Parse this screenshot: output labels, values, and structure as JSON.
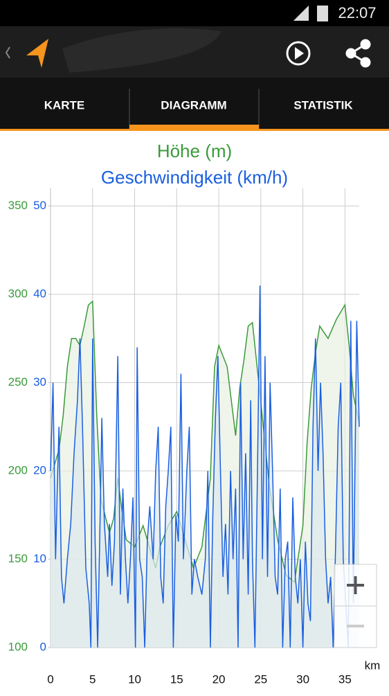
{
  "status_bar": {
    "time": "22:07"
  },
  "tabs": [
    "KARTE",
    "DIAGRAMM",
    "STATISTIK"
  ],
  "active_tab": 1,
  "chart_data": {
    "type": "line",
    "x_label": "km",
    "xlim": [
      0,
      36.7
    ],
    "xticks": [
      0,
      5,
      10,
      15,
      20,
      25,
      30,
      35
    ],
    "ylim": [
      100,
      360
    ],
    "yticks": [
      100,
      150,
      200,
      250,
      300,
      350
    ],
    "y2lim": [
      0,
      52
    ],
    "y2ticks": [
      0,
      10,
      20,
      30,
      40,
      50
    ],
    "grid": true,
    "series": [
      {
        "name": "Höhe (m)",
        "color": "#3a9a3a",
        "fill": "#e8f1e2",
        "x": [
          0,
          1,
          1.5,
          2,
          2.5,
          3,
          3.5,
          4,
          4.5,
          5,
          5.5,
          6,
          7,
          7.5,
          8,
          8.5,
          9,
          10,
          11,
          12,
          12.5,
          13,
          14,
          15,
          16,
          17,
          18,
          19,
          19.5,
          20,
          21,
          22,
          22.5,
          23,
          23.5,
          24,
          25,
          26,
          27,
          28,
          29,
          30,
          30.5,
          31,
          31.5,
          32,
          33,
          34,
          35,
          35.5,
          36,
          36.7
        ],
        "values": [
          196,
          212,
          231,
          259,
          275,
          275,
          271,
          282,
          294,
          296,
          231,
          184,
          165,
          173,
          196,
          177,
          161,
          157,
          169,
          153,
          145,
          157,
          169,
          177,
          161,
          145,
          157,
          196,
          259,
          271,
          259,
          220,
          247,
          263,
          282,
          284,
          239,
          192,
          161,
          141,
          137,
          169,
          216,
          247,
          267,
          282,
          275,
          286,
          294,
          271,
          243,
          227
        ]
      },
      {
        "name": "Geschwindigkeit (km/h)",
        "color": "#1a5fe0",
        "fill": "#dde8ee",
        "axis": "y2",
        "x": [
          0,
          0.3,
          0.6,
          0.8,
          1,
          1.3,
          1.6,
          2,
          2.4,
          2.8,
          3.2,
          3.5,
          3.8,
          4.2,
          4.6,
          4.8,
          5,
          5.3,
          5.6,
          5.9,
          6.1,
          6.4,
          6.8,
          7,
          7.3,
          7.6,
          8,
          8.3,
          8.6,
          8.9,
          9.2,
          9.5,
          9.8,
          10.1,
          10.3,
          10.6,
          10.9,
          11.2,
          11.5,
          11.8,
          12.2,
          12.5,
          12.8,
          13.1,
          13.4,
          13.7,
          14,
          14.3,
          14.6,
          14.9,
          15.2,
          15.5,
          15.8,
          16.2,
          16.5,
          16.8,
          17.1,
          17.5,
          18,
          18.4,
          18.7,
          19,
          19.3,
          19.6,
          19.9,
          20.2,
          20.5,
          20.8,
          21.1,
          21.4,
          21.7,
          22,
          22.3,
          22.6,
          22.9,
          23.2,
          23.5,
          23.8,
          24,
          24.3,
          24.6,
          24.9,
          25.2,
          25.5,
          25.8,
          26.1,
          26.4,
          26.7,
          27,
          27.3,
          27.6,
          27.9,
          28.2,
          28.5,
          28.8,
          29.1,
          29.4,
          29.7,
          30,
          30.3,
          30.6,
          30.9,
          31.2,
          31.5,
          31.8,
          32.1,
          32.4,
          32.7,
          33,
          33.3,
          33.6,
          33.9,
          34.2,
          34.5,
          34.8,
          35.1,
          35.4,
          35.7,
          36,
          36.4,
          36.7
        ],
        "values": [
          20,
          30,
          10,
          18,
          25,
          8,
          5,
          10,
          14,
          22,
          28,
          35,
          25,
          9,
          5,
          0,
          35,
          12,
          0,
          15,
          26,
          14,
          8,
          14,
          7,
          12,
          33,
          6,
          18,
          10,
          5,
          10,
          17,
          0,
          34,
          10,
          8,
          0,
          12,
          16,
          10,
          20,
          25,
          8,
          5,
          16,
          20,
          25,
          0,
          15,
          12,
          31,
          10,
          20,
          25,
          6,
          10,
          8,
          6,
          10,
          20,
          0,
          15,
          26,
          33,
          20,
          8,
          14,
          6,
          20,
          10,
          18,
          0,
          30,
          10,
          22,
          6,
          28,
          10,
          0,
          20,
          41,
          10,
          33,
          8,
          30,
          20,
          8,
          6,
          18,
          0,
          10,
          12,
          0,
          17,
          8,
          5,
          10,
          0,
          12,
          5,
          3,
          25,
          35,
          20,
          30,
          22,
          10,
          5,
          8,
          0,
          12,
          25,
          30,
          10,
          5,
          0,
          37,
          5,
          37,
          25
        ]
      }
    ]
  }
}
